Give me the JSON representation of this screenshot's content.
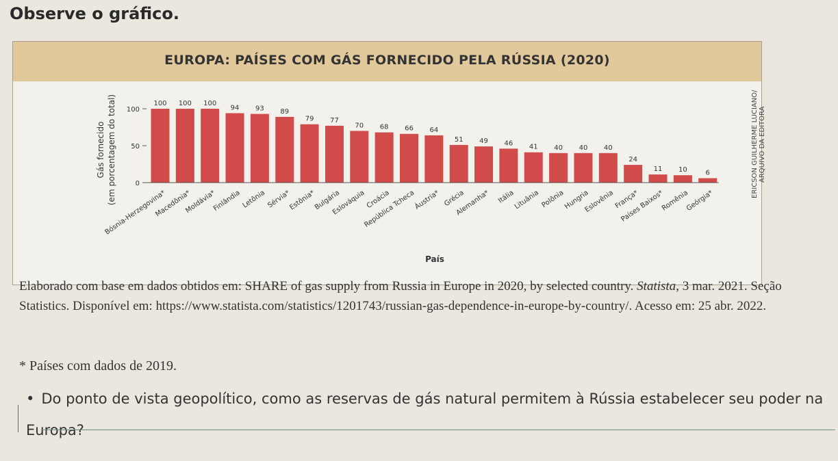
{
  "intro": "Observe o gráfico.",
  "credit": [
    "ERICSON GUILHERME LUCIANO/",
    "ARQUIVO DA EDITORA"
  ],
  "source": {
    "prefix": "Elaborado com base em dados obtidos em: SHARE of gas supply from Russia in Europe in 2020, by selected country. ",
    "publisher": "Statista",
    "suffix": ", 3 mar. 2021. Seção Statistics. Disponível em: https://www.statista.com/statistics/1201743/russian-gas-dependence-in-europe-by-country/. Acesso em: 25 abr. 2022."
  },
  "footnote": "* Países com dados de 2019.",
  "question": {
    "bullet": "•",
    "text": "Do ponto de vista geopolítico, como as reservas de gás natural permitem à Rússia estabelecer seu poder na Europa?"
  },
  "colors": {
    "bar": "#d24b4b",
    "header": "#e2c99c",
    "axis": "#555555"
  },
  "chart_data": {
    "type": "bar",
    "title": "EUROPA: PAÍSES COM GÁS FORNECIDO PELA RÚSSIA (2020)",
    "xlabel": "País",
    "ylabel": [
      "Gás fornecido",
      "(em porcentagem do total)"
    ],
    "ylim": [
      0,
      100
    ],
    "yticks": [
      0,
      50,
      100
    ],
    "grid": false,
    "categories": [
      "Bósnia-Herzegovina*",
      "Macedônia*",
      "Moldávia*",
      "Finlândia",
      "Letônia",
      "Sérvia*",
      "Estônia*",
      "Bulgária",
      "Eslováquia",
      "Croácia",
      "República Tcheca",
      "Áustria*",
      "Grécia",
      "Alemanha*",
      "Itália",
      "Lituânia",
      "Polônia",
      "Hungria",
      "Eslovênia",
      "França*",
      "Países Baixos*",
      "Romênia",
      "Geórgia*"
    ],
    "values": [
      100,
      100,
      100,
      94,
      93,
      89,
      79,
      77,
      70,
      68,
      66,
      64,
      51,
      49,
      46,
      41,
      40,
      40,
      40,
      24,
      11,
      10,
      6
    ]
  }
}
